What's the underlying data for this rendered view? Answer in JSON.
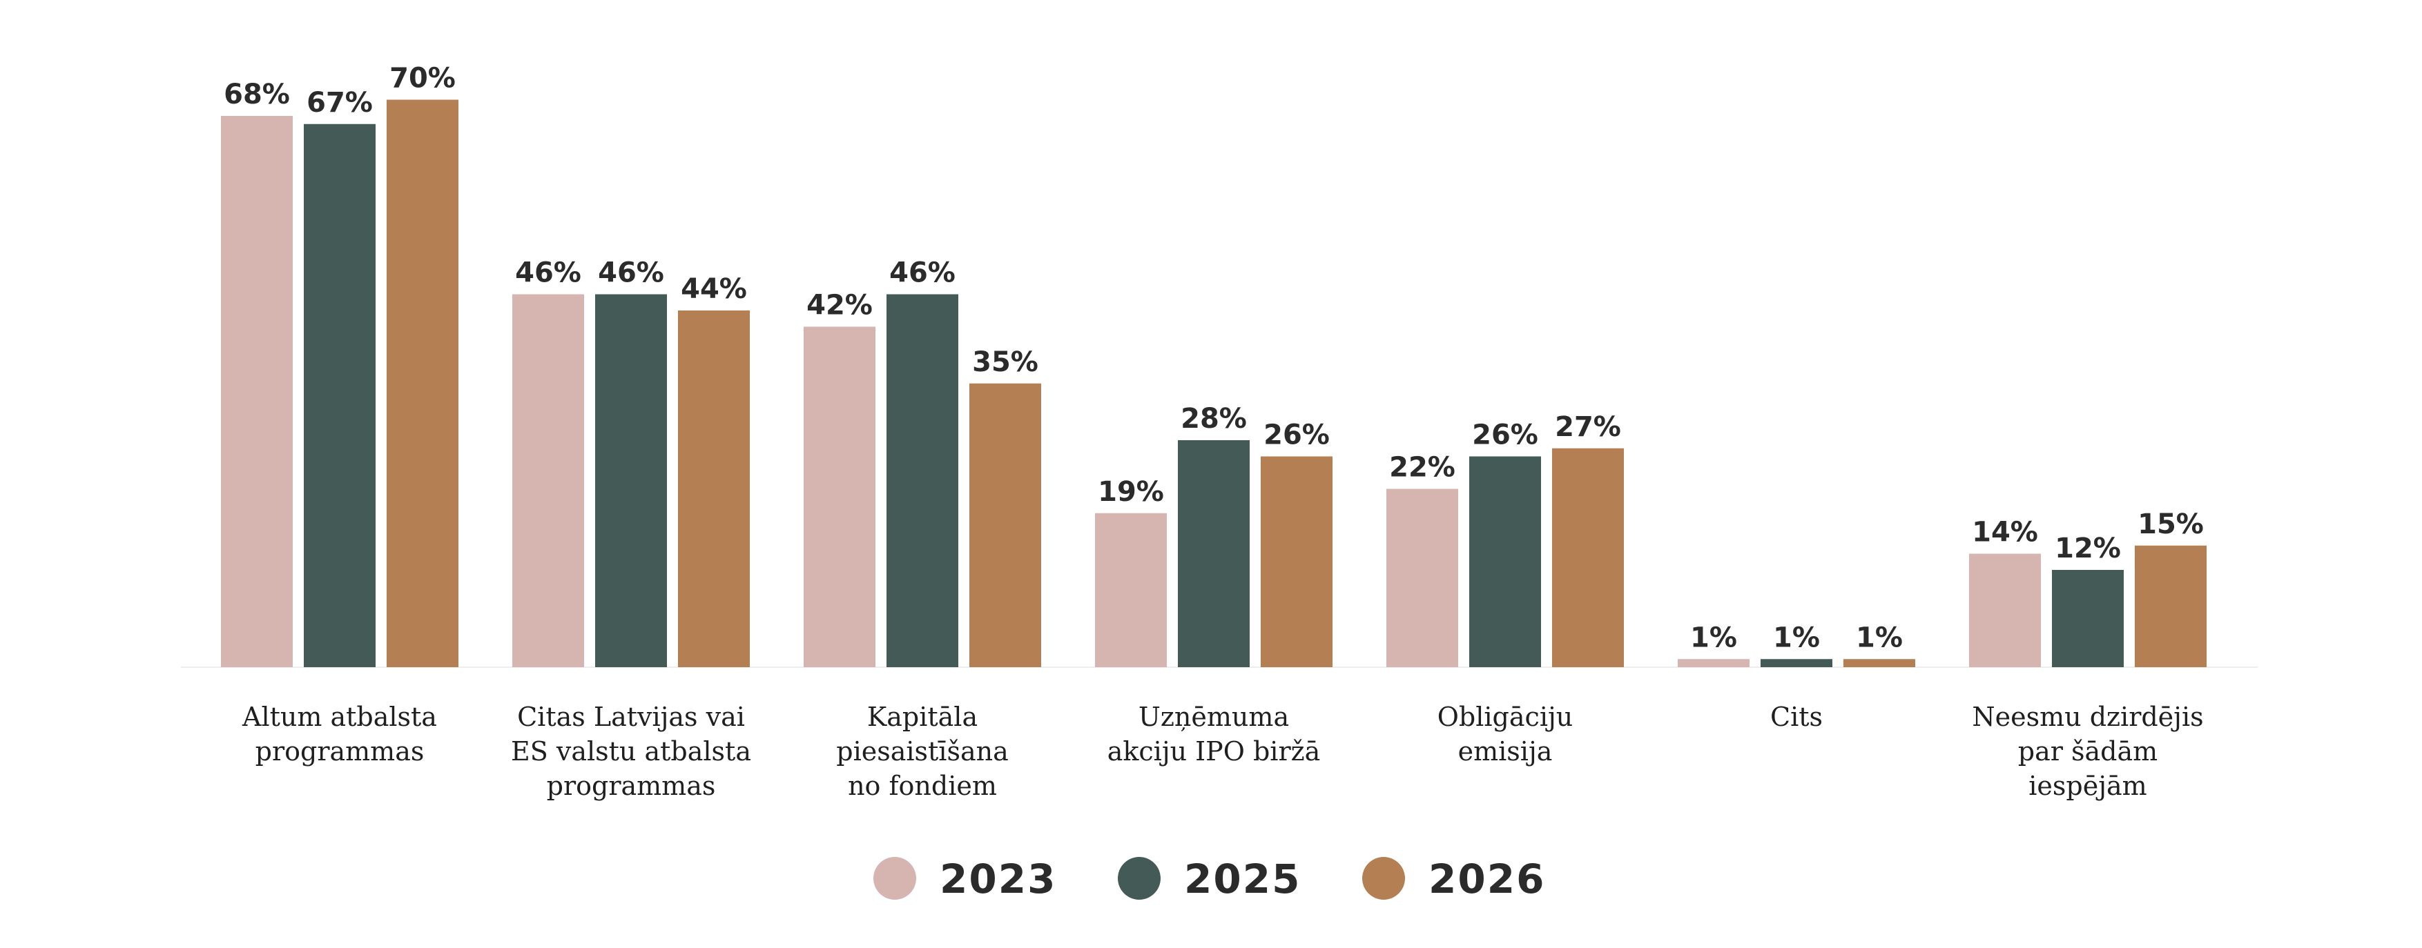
{
  "chart_data": {
    "type": "bar",
    "categories": [
      [
        "Altum atbalsta",
        "programmas"
      ],
      [
        "Citas Latvijas vai",
        "ES valstu atbalsta",
        "programmas"
      ],
      [
        "Kapitāla",
        "piesaistīšana",
        "no fondiem"
      ],
      [
        "Uzņēmuma",
        "akciju IPO biržā"
      ],
      [
        "Obligāciju",
        "emisija"
      ],
      [
        "Cits"
      ],
      [
        "Neesmu dzirdējis",
        "par šādām",
        "iespējām"
      ]
    ],
    "series": [
      {
        "name": "2023",
        "color": "#d6b4b0",
        "values": [
          68,
          46,
          42,
          19,
          22,
          1,
          14
        ]
      },
      {
        "name": "2025",
        "color": "#435a56",
        "values": [
          67,
          46,
          46,
          28,
          26,
          1,
          12
        ]
      },
      {
        "name": "2026",
        "color": "#b37f53",
        "values": [
          70,
          44,
          35,
          26,
          27,
          1,
          15
        ]
      }
    ],
    "value_suffix": "%",
    "ylim": [
      0,
      70
    ],
    "grid": false,
    "legend_position": "bottom-center"
  }
}
